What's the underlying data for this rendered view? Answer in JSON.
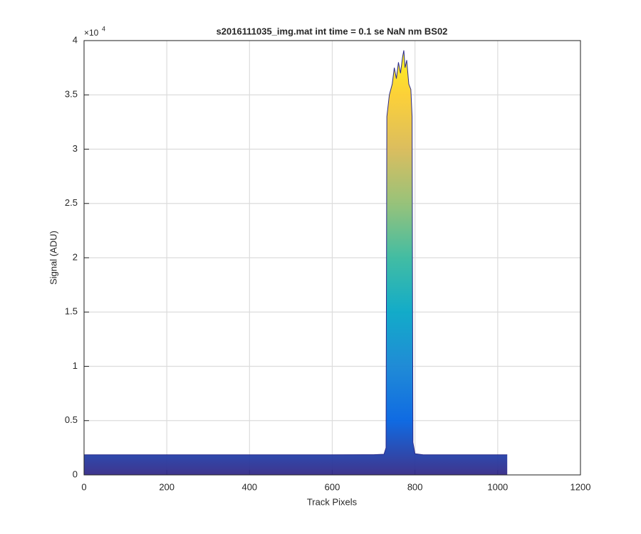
{
  "chart_data": {
    "type": "area",
    "title": "s2016111035_img.mat int time = 0.1 se  NaN nm BS02",
    "xlabel": "Track Pixels",
    "ylabel": "Signal (ADU)",
    "y_exponent_label": "×10",
    "y_exponent_power": "4",
    "x": [
      0,
      100,
      200,
      300,
      400,
      500,
      600,
      700,
      725,
      730,
      732,
      738,
      745,
      750,
      755,
      760,
      765,
      770,
      773,
      776,
      780,
      785,
      790,
      793,
      795,
      800,
      820,
      900,
      1000,
      1023
    ],
    "values": [
      1850,
      1850,
      1850,
      1850,
      1850,
      1850,
      1850,
      1860,
      1900,
      2500,
      33000,
      35000,
      36000,
      37500,
      36500,
      38000,
      37000,
      38500,
      39100,
      37500,
      38200,
      36000,
      35500,
      33000,
      3000,
      1950,
      1850,
      1850,
      1850,
      1850
    ],
    "colormap": [
      "#352a87",
      "#0363e1",
      "#1485d4",
      "#06a7c6",
      "#38b99e",
      "#92bf73",
      "#d9ba56",
      "#fcce2e",
      "#f9fb0e"
    ],
    "baseline_color": "#2a2a8a",
    "xlim": [
      0,
      1200
    ],
    "xticks": [
      0,
      200,
      400,
      600,
      800,
      1000,
      1200
    ],
    "ylim": [
      0,
      40000
    ],
    "yticks": [
      0,
      {
        "value": 5000,
        "label": "0.5"
      },
      {
        "value": 10000,
        "label": "1"
      },
      {
        "value": 15000,
        "label": "1.5"
      },
      {
        "value": 20000,
        "label": "2"
      },
      {
        "value": 25000,
        "label": "2.5"
      },
      {
        "value": 30000,
        "label": "3"
      },
      {
        "value": 35000,
        "label": "3.5"
      },
      {
        "value": 40000,
        "label": "4"
      }
    ],
    "grid": true
  }
}
